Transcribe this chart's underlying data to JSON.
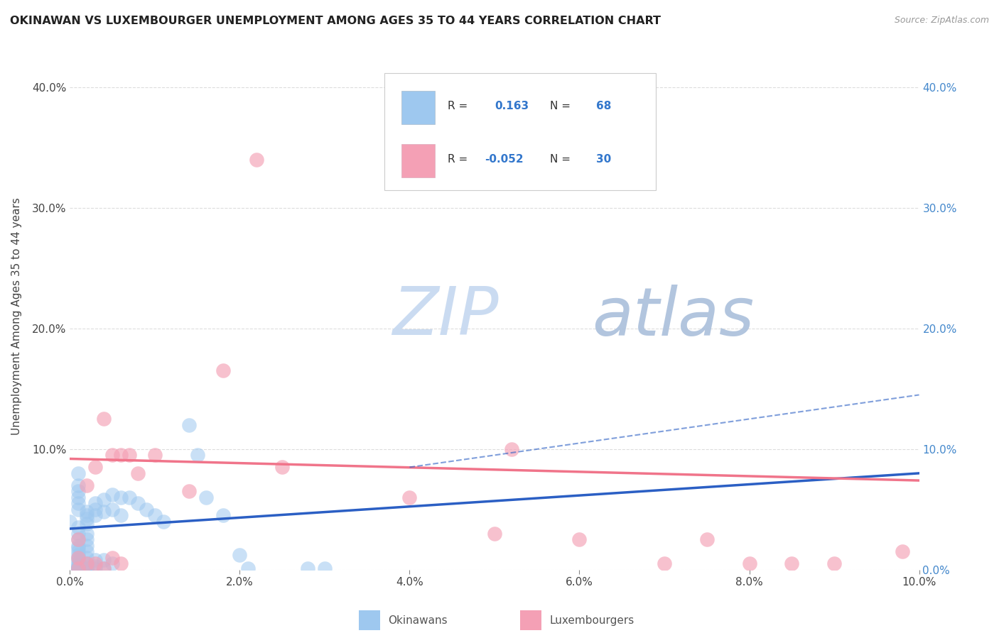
{
  "title": "OKINAWAN VS LUXEMBOURGER UNEMPLOYMENT AMONG AGES 35 TO 44 YEARS CORRELATION CHART",
  "source": "Source: ZipAtlas.com",
  "ylabel": "Unemployment Among Ages 35 to 44 years",
  "xlim": [
    0.0,
    0.1
  ],
  "ylim": [
    0.0,
    0.42
  ],
  "xticks": [
    0.0,
    0.02,
    0.04,
    0.06,
    0.08,
    0.1
  ],
  "yticks": [
    0.0,
    0.1,
    0.2,
    0.3,
    0.4
  ],
  "okinawan_color": "#9EC8EF",
  "luxembourger_color": "#F4A0B5",
  "okinawan_line_color": "#2B5FC4",
  "luxembourger_line_color": "#F0748A",
  "watermark_zip_color": "#CCDDF5",
  "watermark_atlas_color": "#BBCCE8",
  "R_okinawan": 0.163,
  "N_okinawan": 68,
  "R_luxembourger": -0.052,
  "N_luxembourger": 30,
  "okinawan_x": [
    0.0,
    0.001,
    0.001,
    0.001,
    0.001,
    0.001,
    0.001,
    0.001,
    0.001,
    0.001,
    0.001,
    0.001,
    0.001,
    0.001,
    0.001,
    0.001,
    0.001,
    0.001,
    0.001,
    0.001,
    0.001,
    0.001,
    0.001,
    0.001,
    0.001,
    0.001,
    0.002,
    0.002,
    0.002,
    0.002,
    0.002,
    0.002,
    0.002,
    0.002,
    0.002,
    0.002,
    0.002,
    0.002,
    0.002,
    0.002,
    0.003,
    0.003,
    0.003,
    0.003,
    0.003,
    0.003,
    0.004,
    0.004,
    0.004,
    0.004,
    0.005,
    0.005,
    0.005,
    0.006,
    0.006,
    0.007,
    0.008,
    0.009,
    0.01,
    0.011,
    0.014,
    0.015,
    0.016,
    0.018,
    0.02,
    0.021,
    0.028,
    0.03
  ],
  "okinawan_y": [
    0.04,
    0.035,
    0.03,
    0.025,
    0.02,
    0.018,
    0.015,
    0.012,
    0.01,
    0.008,
    0.006,
    0.004,
    0.003,
    0.002,
    0.001,
    0.001,
    0.001,
    0.001,
    0.001,
    0.001,
    0.05,
    0.055,
    0.06,
    0.065,
    0.07,
    0.08,
    0.048,
    0.045,
    0.042,
    0.038,
    0.03,
    0.025,
    0.02,
    0.015,
    0.01,
    0.005,
    0.003,
    0.001,
    0.001,
    0.001,
    0.055,
    0.05,
    0.045,
    0.008,
    0.003,
    0.001,
    0.058,
    0.048,
    0.008,
    0.001,
    0.062,
    0.05,
    0.005,
    0.06,
    0.045,
    0.06,
    0.055,
    0.05,
    0.045,
    0.04,
    0.12,
    0.095,
    0.06,
    0.045,
    0.012,
    0.001,
    0.001,
    0.001
  ],
  "luxembourger_x": [
    0.001,
    0.001,
    0.001,
    0.002,
    0.002,
    0.003,
    0.003,
    0.004,
    0.004,
    0.005,
    0.005,
    0.006,
    0.006,
    0.007,
    0.008,
    0.01,
    0.014,
    0.018,
    0.022,
    0.025,
    0.04,
    0.05,
    0.052,
    0.06,
    0.07,
    0.075,
    0.08,
    0.085,
    0.09,
    0.098
  ],
  "luxembourger_y": [
    0.025,
    0.01,
    0.001,
    0.07,
    0.005,
    0.085,
    0.005,
    0.125,
    0.001,
    0.095,
    0.01,
    0.095,
    0.005,
    0.095,
    0.08,
    0.095,
    0.065,
    0.165,
    0.34,
    0.085,
    0.06,
    0.03,
    0.1,
    0.025,
    0.005,
    0.025,
    0.005,
    0.005,
    0.005,
    0.015
  ],
  "blue_line_x0": 0.0,
  "blue_line_y0": 0.034,
  "blue_line_x1": 0.1,
  "blue_line_y1": 0.08,
  "pink_line_x0": 0.0,
  "pink_line_y0": 0.092,
  "pink_line_x1": 0.1,
  "pink_line_y1": 0.074,
  "dash_line_x0": 0.04,
  "dash_line_y0": 0.085,
  "dash_line_x1": 0.1,
  "dash_line_y1": 0.145,
  "bg_color": "#FFFFFF",
  "grid_color": "#DDDDDD"
}
